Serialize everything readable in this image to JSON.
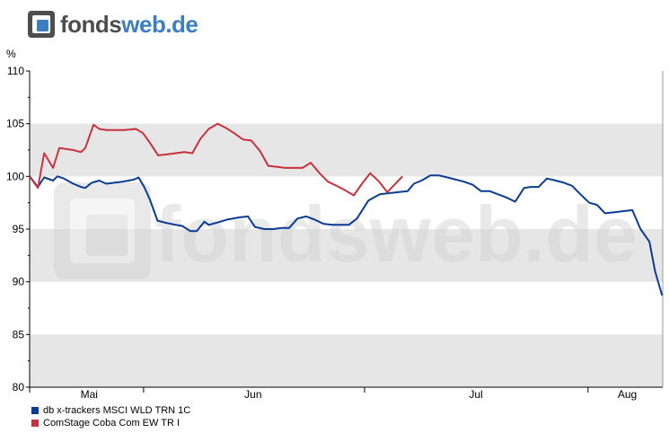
{
  "brand": {
    "name_part1": "fonds",
    "name_part2": "web.de",
    "accent_color": "#3b7ec2",
    "text_color": "#4d4d4d"
  },
  "watermark": "fondsweb.de",
  "chart_data": {
    "type": "line",
    "ylabel": "%",
    "ylim": [
      80,
      110
    ],
    "yticks": [
      80,
      85,
      90,
      95,
      100,
      105,
      110
    ],
    "xlim": [
      0,
      100
    ],
    "month_labels": [
      {
        "label": "Mai",
        "x": 9.4
      },
      {
        "label": "Jun",
        "x": 35.3
      },
      {
        "label": "Jul",
        "x": 70.5
      },
      {
        "label": "Aug",
        "x": 94.4
      }
    ],
    "month_separators": [
      0,
      18.0,
      52.9,
      88.2
    ],
    "grid": true,
    "series": [
      {
        "name": "db x-trackers MSCI WLD TRN 1C",
        "color": "#0a3c96",
        "points": [
          [
            0,
            100
          ],
          [
            1.3,
            99
          ],
          [
            2.3,
            99.9
          ],
          [
            3.7,
            99.6
          ],
          [
            4.4,
            100
          ],
          [
            5.4,
            99.8
          ],
          [
            6.9,
            99.3
          ],
          [
            8.1,
            99
          ],
          [
            8.8,
            98.9
          ],
          [
            9.8,
            99.4
          ],
          [
            11,
            99.6
          ],
          [
            12.1,
            99.3
          ],
          [
            13.4,
            99.4
          ],
          [
            14.7,
            99.5
          ],
          [
            16.5,
            99.7
          ],
          [
            17.2,
            99.9
          ],
          [
            18.1,
            99
          ],
          [
            19,
            97.8
          ],
          [
            20.2,
            95.8
          ],
          [
            21.5,
            95.6
          ],
          [
            23.1,
            95.4
          ],
          [
            24.1,
            95.3
          ],
          [
            25.4,
            94.8
          ],
          [
            26.4,
            94.8
          ],
          [
            27.6,
            95.7
          ],
          [
            28.3,
            95.4
          ],
          [
            29.5,
            95.6
          ],
          [
            31.2,
            95.9
          ],
          [
            33,
            96.1
          ],
          [
            34.5,
            96.2
          ],
          [
            35.6,
            95.2
          ],
          [
            37.1,
            95
          ],
          [
            38.5,
            95
          ],
          [
            39.8,
            95.1
          ],
          [
            41,
            95.1
          ],
          [
            42.3,
            96
          ],
          [
            43.7,
            96.2
          ],
          [
            45,
            95.9
          ],
          [
            46.4,
            95.5
          ],
          [
            47.8,
            95.4
          ],
          [
            49.1,
            95.4
          ],
          [
            50.4,
            95.4
          ],
          [
            51.7,
            96
          ],
          [
            53.5,
            97.7
          ],
          [
            55.3,
            98.3
          ],
          [
            58.2,
            98.5
          ],
          [
            59.7,
            98.6
          ],
          [
            60.7,
            99.3
          ],
          [
            61.9,
            99.6
          ],
          [
            63.3,
            100.1
          ],
          [
            64.6,
            100.1
          ],
          [
            66,
            99.9
          ],
          [
            67.3,
            99.7
          ],
          [
            68.6,
            99.5
          ],
          [
            70,
            99.2
          ],
          [
            71.3,
            98.6
          ],
          [
            72.7,
            98.6
          ],
          [
            74,
            98.3
          ],
          [
            75.3,
            98
          ],
          [
            76.7,
            97.6
          ],
          [
            78.1,
            98.9
          ],
          [
            79.1,
            99
          ],
          [
            80.4,
            99
          ],
          [
            81.7,
            99.8
          ],
          [
            83.1,
            99.6
          ],
          [
            84.4,
            99.4
          ],
          [
            85.7,
            99.1
          ],
          [
            87,
            98.3
          ],
          [
            88.4,
            97.5
          ],
          [
            89.6,
            97.3
          ],
          [
            90.9,
            96.5
          ],
          [
            92.4,
            96.6
          ],
          [
            93.7,
            96.7
          ],
          [
            95.2,
            96.8
          ],
          [
            96.5,
            95
          ],
          [
            97.9,
            93.8
          ],
          [
            98.8,
            91
          ],
          [
            99.9,
            88.7
          ]
        ]
      },
      {
        "name": "ComStage Coba Com EW TR I",
        "color": "#c8323c",
        "points": [
          [
            0,
            100
          ],
          [
            1.3,
            98.9
          ],
          [
            2.3,
            102.2
          ],
          [
            3.7,
            100.8
          ],
          [
            4.7,
            102.7
          ],
          [
            6.9,
            102.5
          ],
          [
            8.1,
            102.3
          ],
          [
            8.8,
            102.7
          ],
          [
            10.1,
            104.9
          ],
          [
            11,
            104.5
          ],
          [
            12.1,
            104.4
          ],
          [
            13.7,
            104.4
          ],
          [
            15,
            104.4
          ],
          [
            16.8,
            104.5
          ],
          [
            17.9,
            104.1
          ],
          [
            19,
            103.2
          ],
          [
            20.3,
            102
          ],
          [
            21.8,
            102.1
          ],
          [
            23.1,
            102.2
          ],
          [
            24.4,
            102.3
          ],
          [
            25.7,
            102.2
          ],
          [
            27,
            103.6
          ],
          [
            28.3,
            104.5
          ],
          [
            29.7,
            105
          ],
          [
            31,
            104.6
          ],
          [
            32.3,
            104.1
          ],
          [
            33.7,
            103.5
          ],
          [
            35,
            103.4
          ],
          [
            36.4,
            102.4
          ],
          [
            37.7,
            101
          ],
          [
            39.1,
            100.9
          ],
          [
            40.4,
            100.8
          ],
          [
            41.8,
            100.8
          ],
          [
            43.1,
            100.8
          ],
          [
            44.4,
            101.3
          ],
          [
            45.8,
            100.3
          ],
          [
            47.1,
            99.5
          ],
          [
            48.5,
            99.1
          ],
          [
            49.8,
            98.7
          ],
          [
            51.2,
            98.2
          ],
          [
            52.5,
            99.3
          ],
          [
            53.8,
            100.3
          ],
          [
            55.2,
            99.5
          ],
          [
            56.5,
            98.5
          ],
          [
            58.9,
            100
          ]
        ]
      }
    ],
    "series_display": [
      {
        "name": "db x-trackers MSCI WLD TRN 1C",
        "color": "#0a3c96"
      },
      {
        "name": "ComStage Coba Com EW TR I",
        "color": "#c8323c"
      }
    ]
  }
}
